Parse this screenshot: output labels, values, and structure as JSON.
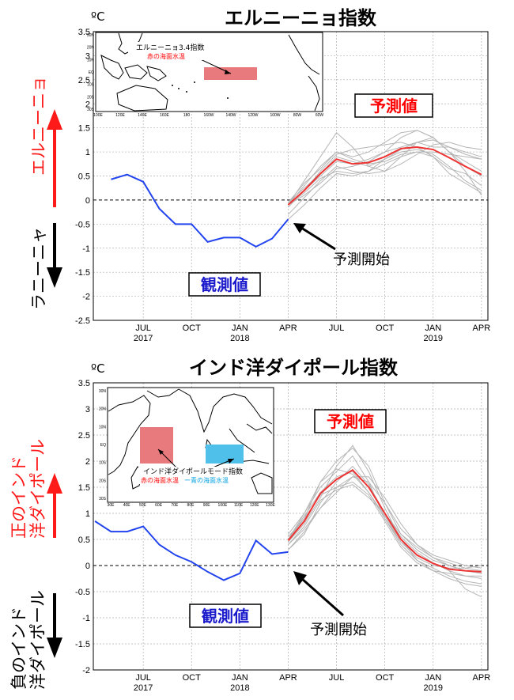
{
  "chart_data": [
    {
      "type": "line",
      "title": "エルニーニョ指数",
      "ylabel": "ºC",
      "ylim": [
        -2.5,
        3.5
      ],
      "yticks": [
        "-2.5",
        "-2",
        "-1.5",
        "-1",
        "-0.5",
        "0",
        "0.5",
        "1",
        "1.5",
        "2",
        "2.5",
        "3",
        "3.5"
      ],
      "xticks": [
        {
          "m": "JUL",
          "y": "2017"
        },
        {
          "m": "OCT",
          "y": ""
        },
        {
          "m": "JAN",
          "y": "2018"
        },
        {
          "m": "APR",
          "y": ""
        },
        {
          "m": "JUL",
          "y": ""
        },
        {
          "m": "OCT",
          "y": ""
        },
        {
          "m": "JAN",
          "y": "2019"
        },
        {
          "m": "APR",
          "y": ""
        }
      ],
      "grid": true,
      "side_top": "エルニーニョ",
      "side_bottom": "ラニーニャ",
      "forecast_tag": "予測値",
      "observed_tag": "観測値",
      "forecast_start_label": "予測開始",
      "inset": {
        "title": "エルニーニョ3.4指数",
        "legend": "赤の海面水温",
        "lat_labels": [
          "30N",
          "20N",
          "10N",
          "EQ",
          "10S",
          "20S",
          "30S"
        ],
        "lon_labels": [
          "100E",
          "120E",
          "140E",
          "160E",
          "180",
          "160W",
          "140W",
          "120W",
          "100W",
          "80W",
          "60W"
        ]
      },
      "x_start": "2017-04",
      "observed": {
        "name": "観測値",
        "color": "#2244ee",
        "x": [
          "2017-05",
          "2017-06",
          "2017-07",
          "2017-08",
          "2017-09",
          "2017-10",
          "2017-11",
          "2017-12",
          "2018-01",
          "2018-02",
          "2018-03",
          "2018-04"
        ],
        "values": [
          0.43,
          0.53,
          0.38,
          -0.18,
          -0.5,
          -0.5,
          -0.87,
          -0.78,
          -0.78,
          -0.97,
          -0.8,
          -0.4
        ]
      },
      "forecast_x": [
        "2018-04",
        "2018-05",
        "2018-06",
        "2018-07",
        "2018-08",
        "2018-09",
        "2018-10",
        "2018-11",
        "2018-12",
        "2019-01",
        "2019-02",
        "2019-03",
        "2019-04"
      ],
      "forecast_mean": {
        "name": "予測値",
        "color": "#ee3333",
        "values": [
          -0.1,
          0.2,
          0.55,
          0.85,
          0.75,
          0.78,
          0.9,
          1.07,
          1.1,
          1.05,
          0.88,
          0.7,
          0.53
        ]
      },
      "members": [
        [
          -0.1,
          0.4,
          0.9,
          1.4,
          1.1,
          0.7,
          0.6,
          0.9,
          1.2,
          1.3,
          1.0,
          0.7,
          0.5
        ],
        [
          -0.1,
          0.3,
          0.7,
          1.0,
          0.9,
          1.0,
          1.2,
          1.4,
          1.45,
          1.3,
          1.0,
          0.8,
          0.6
        ],
        [
          -0.15,
          0.2,
          0.5,
          0.8,
          0.75,
          0.85,
          1.0,
          1.1,
          1.2,
          1.1,
          1.1,
          1.0,
          0.9
        ],
        [
          -0.1,
          0.15,
          0.45,
          0.6,
          0.55,
          0.6,
          0.75,
          0.9,
          1.0,
          1.0,
          0.95,
          0.9,
          0.85
        ],
        [
          -0.05,
          0.25,
          0.55,
          0.9,
          0.8,
          0.7,
          0.85,
          1.0,
          1.05,
          0.95,
          0.7,
          0.4,
          0.2
        ],
        [
          -0.1,
          0.1,
          0.35,
          0.65,
          0.7,
          0.8,
          1.0,
          1.3,
          1.45,
          1.3,
          1.0,
          0.6,
          0.1
        ],
        [
          -0.1,
          0.2,
          0.6,
          0.95,
          1.05,
          1.1,
          1.15,
          1.2,
          1.1,
          0.9,
          0.55,
          0.35,
          0.15
        ],
        [
          -0.3,
          0.05,
          0.4,
          0.7,
          0.6,
          0.55,
          0.6,
          0.75,
          0.95,
          1.15,
          1.2,
          1.1,
          1.05
        ],
        [
          -0.05,
          0.35,
          0.65,
          1.0,
          0.85,
          0.75,
          0.8,
          0.95,
          1.0,
          0.9,
          0.65,
          0.55,
          0.3
        ],
        [
          -0.4,
          -0.1,
          0.25,
          0.55,
          0.5,
          0.6,
          0.85,
          1.05,
          1.2,
          1.25,
          1.1,
          0.95,
          0.85
        ]
      ]
    },
    {
      "type": "line",
      "title": "インド洋ダイポール指数",
      "ylabel": "ºC",
      "ylim": [
        -2,
        3.5
      ],
      "yticks": [
        "-2",
        "-1.5",
        "-1",
        "-0.5",
        "0",
        "0.5",
        "1",
        "1.5",
        "2",
        "2.5",
        "3",
        "3.5"
      ],
      "xticks": [
        {
          "m": "JUL",
          "y": "2017"
        },
        {
          "m": "OCT",
          "y": ""
        },
        {
          "m": "JAN",
          "y": "2018"
        },
        {
          "m": "APR",
          "y": ""
        },
        {
          "m": "JUL",
          "y": ""
        },
        {
          "m": "OCT",
          "y": ""
        },
        {
          "m": "JAN",
          "y": "2019"
        },
        {
          "m": "APR",
          "y": ""
        }
      ],
      "grid": true,
      "side_top": "正のインド洋ダイポール",
      "side_bottom": "負のインド洋ダイポール",
      "forecast_tag": "予測値",
      "observed_tag": "観測値",
      "forecast_start_label": "予測開始",
      "inset": {
        "title": "インド洋ダイポールモード指数",
        "legend_red": "赤の海面水温",
        "legend_mid": "ー",
        "legend_blue": "青の海面水温",
        "lat_labels": [
          "30N",
          "20N",
          "10N",
          "EQ",
          "10S",
          "20S",
          "30S"
        ],
        "lon_labels": [
          "30E",
          "40E",
          "50E",
          "60E",
          "70E",
          "80E",
          "90E",
          "100E",
          "110E",
          "120E",
          "130E"
        ]
      },
      "x_start": "2017-04",
      "observed": {
        "name": "観測値",
        "color": "#2244ee",
        "x": [
          "2017-04",
          "2017-05",
          "2017-06",
          "2017-07",
          "2017-08",
          "2017-09",
          "2017-10",
          "2017-11",
          "2017-12",
          "2018-01",
          "2018-02",
          "2018-03",
          "2018-04"
        ],
        "values": [
          0.85,
          0.65,
          0.65,
          0.75,
          0.4,
          0.2,
          0.07,
          -0.12,
          -0.28,
          -0.15,
          0.48,
          0.22,
          0.26
        ]
      },
      "forecast_x": [
        "2018-04",
        "2018-05",
        "2018-06",
        "2018-07",
        "2018-08",
        "2018-09",
        "2018-10",
        "2018-11",
        "2018-12",
        "2019-01",
        "2019-02",
        "2019-03",
        "2019-04"
      ],
      "forecast_mean": {
        "name": "予測値",
        "color": "#ee3333",
        "values": [
          0.48,
          0.85,
          1.38,
          1.65,
          1.83,
          1.5,
          1.0,
          0.5,
          0.2,
          0.04,
          -0.07,
          -0.1,
          -0.12
        ]
      },
      "members": [
        [
          0.5,
          0.9,
          1.6,
          2.0,
          2.25,
          1.9,
          1.2,
          0.6,
          0.3,
          0.1,
          0.0,
          -0.1,
          -0.15
        ],
        [
          0.4,
          0.7,
          1.1,
          1.5,
          1.7,
          1.6,
          1.2,
          0.7,
          0.4,
          0.2,
          0.1,
          0.0,
          -0.05
        ],
        [
          0.6,
          1.0,
          1.5,
          1.8,
          2.1,
          1.6,
          0.9,
          0.4,
          0.1,
          -0.05,
          -0.2,
          -0.3,
          -0.35
        ],
        [
          0.3,
          0.6,
          1.2,
          1.6,
          1.9,
          1.55,
          1.0,
          0.55,
          0.25,
          0.05,
          -0.1,
          -0.2,
          -0.25
        ],
        [
          0.5,
          0.95,
          1.4,
          1.7,
          1.8,
          1.4,
          0.9,
          0.45,
          0.15,
          0.0,
          -0.05,
          -0.05,
          0.0
        ],
        [
          0.45,
          0.8,
          1.3,
          1.9,
          2.3,
          1.8,
          1.1,
          0.5,
          0.1,
          -0.1,
          -0.25,
          -0.35,
          -0.4
        ],
        [
          0.55,
          0.9,
          1.35,
          1.5,
          1.6,
          1.35,
          0.85,
          0.35,
          0.05,
          -0.1,
          -0.15,
          -0.2,
          -0.2
        ],
        [
          0.4,
          0.75,
          1.25,
          1.45,
          1.55,
          1.3,
          1.0,
          0.6,
          0.35,
          0.15,
          0.05,
          -0.05,
          -0.1
        ],
        [
          0.5,
          1.0,
          1.6,
          1.85,
          1.75,
          1.4,
          0.95,
          0.45,
          0.2,
          0.05,
          -0.1,
          -0.45,
          -0.6
        ],
        [
          0.3,
          0.65,
          1.1,
          1.4,
          1.7,
          1.7,
          1.3,
          0.8,
          0.4,
          0.15,
          0.0,
          -0.1,
          -0.15
        ]
      ]
    }
  ]
}
